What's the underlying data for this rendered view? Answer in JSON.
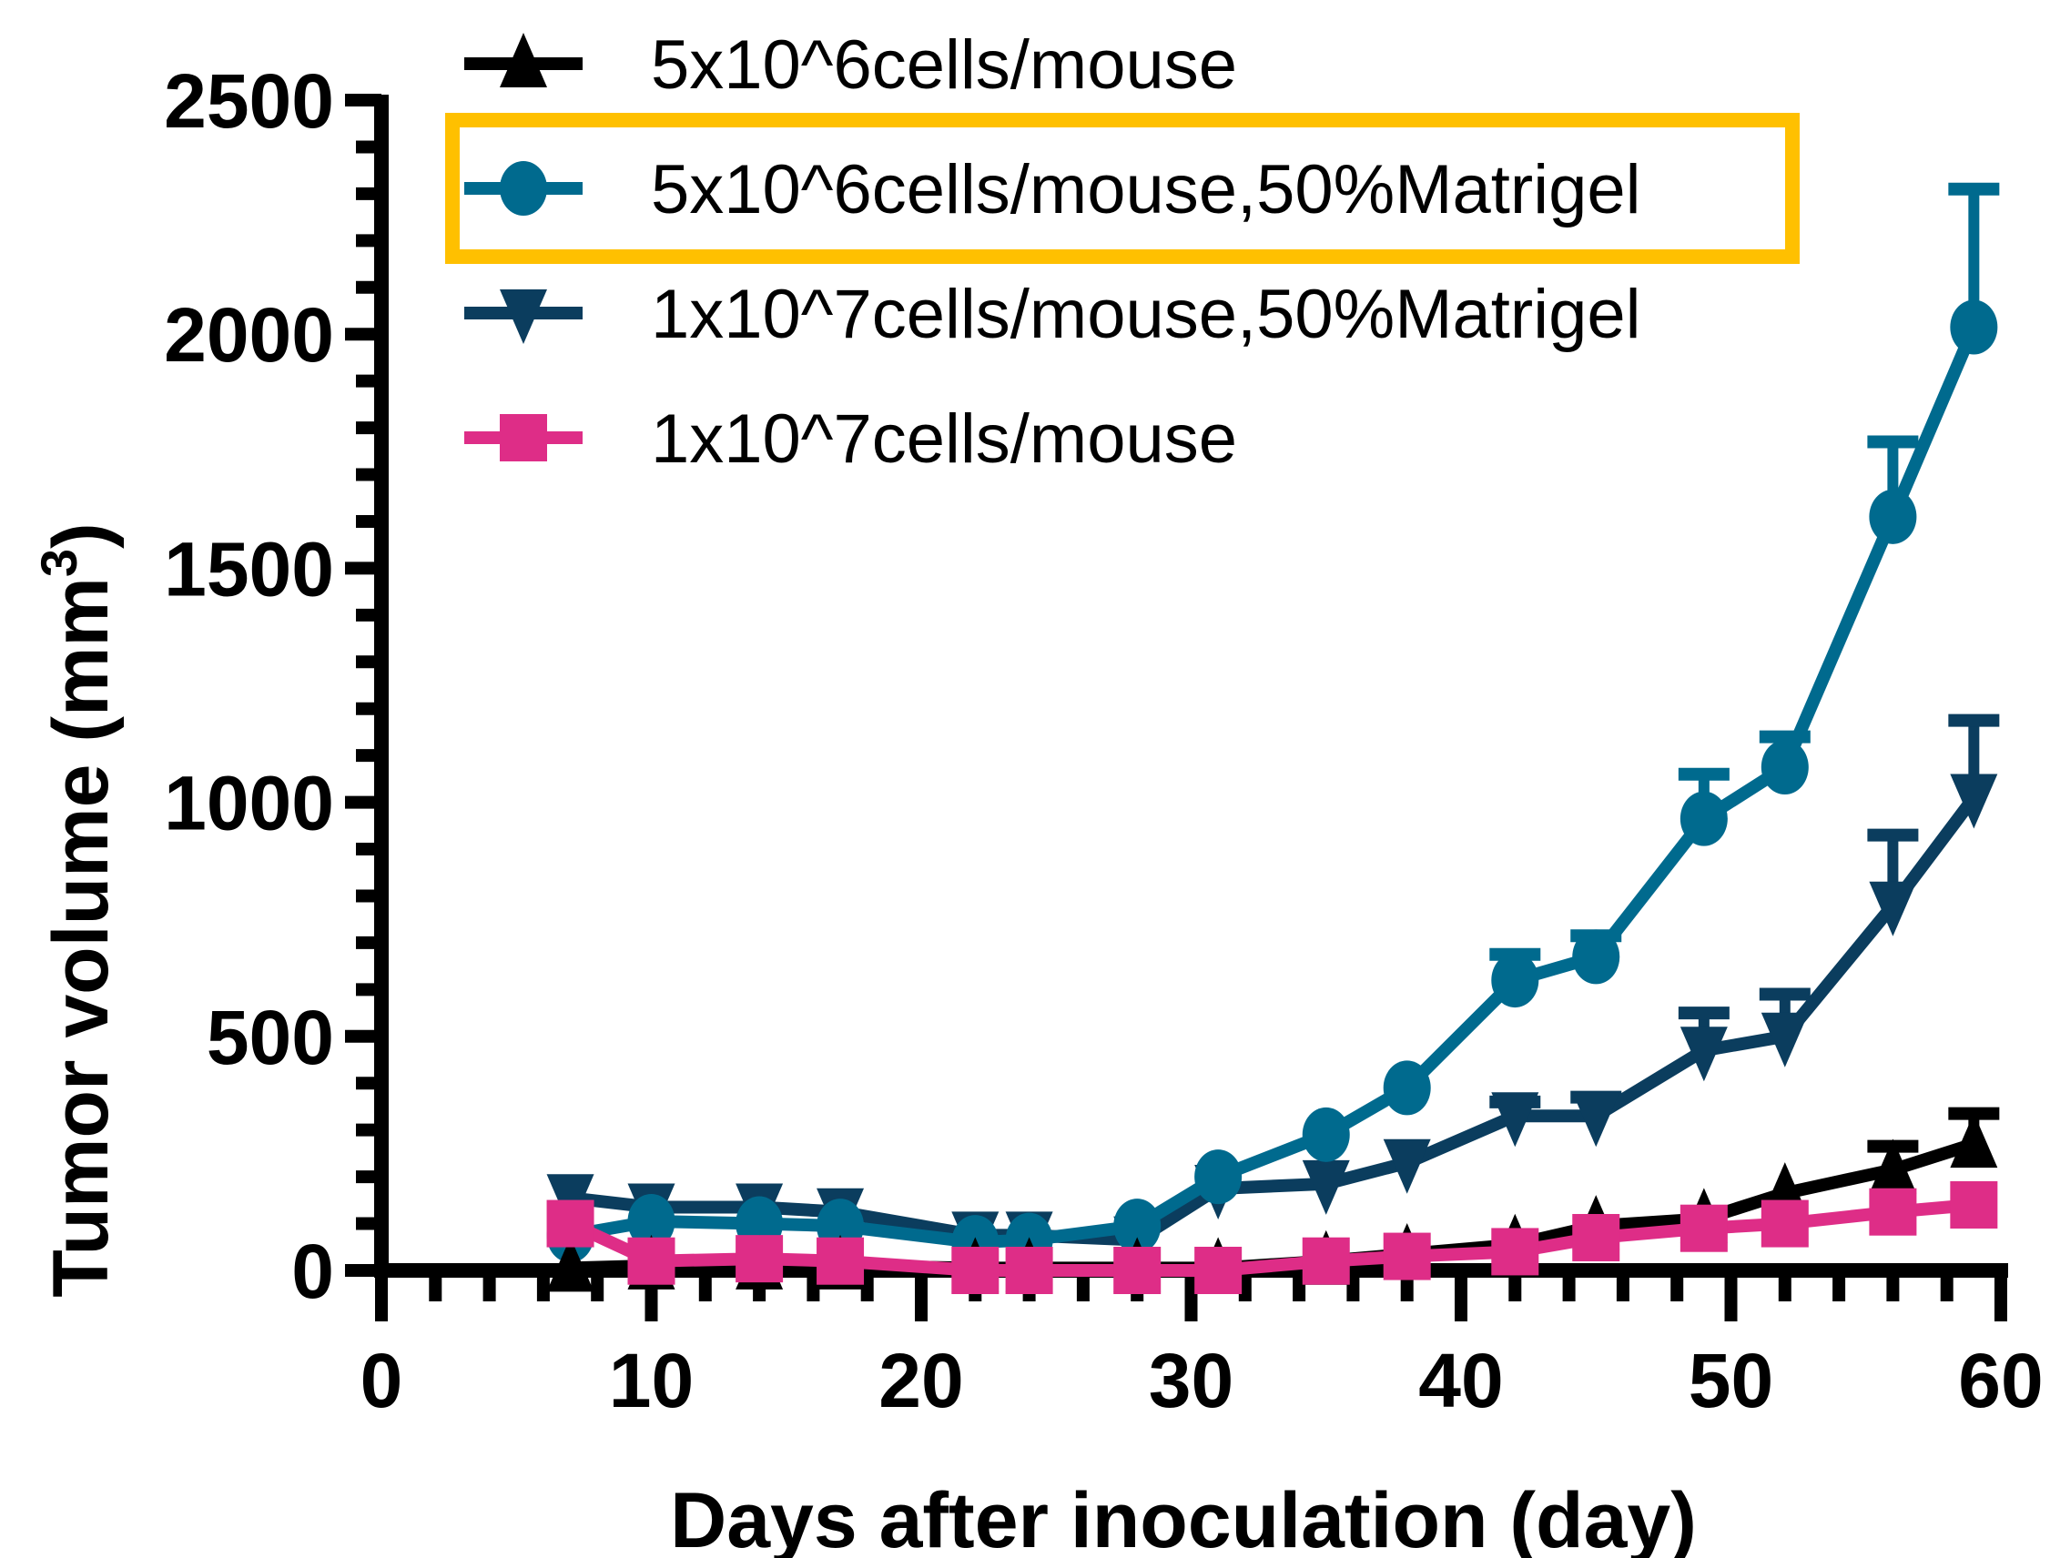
{
  "chart_data": {
    "type": "line",
    "title": "",
    "xlabel": "Days after inoculation (day)",
    "ylabel": "Tumor volume (mm",
    "ylabel_superscript": "3",
    "ylabel_suffix": ")",
    "xlim": [
      0,
      60
    ],
    "ylim": [
      0,
      2500
    ],
    "xticks": [
      0,
      10,
      20,
      30,
      40,
      50,
      60
    ],
    "yticks": [
      0,
      500,
      1000,
      1500,
      2000,
      2500
    ],
    "xtick_labels": [
      "0",
      "10",
      "20",
      "30",
      "40",
      "50",
      "60"
    ],
    "ytick_labels": [
      "0",
      "500",
      "1000",
      "1500",
      "2000",
      "2500"
    ],
    "x_minor_step": 2,
    "y_minor_step": 100,
    "grid": false,
    "legend_position": "top",
    "highlighted_legend_index": 1,
    "highlight_color": "#FFC000",
    "x": [
      7,
      10,
      14,
      17,
      22,
      24,
      28,
      31,
      35,
      38,
      42,
      45,
      49,
      52,
      56,
      59
    ],
    "series": [
      {
        "name": "5x10^6cells/mouse",
        "marker": "triangle-up",
        "color": "#000000",
        "values": [
          5,
          10,
          10,
          10,
          5,
          5,
          5,
          5,
          20,
          35,
          55,
          95,
          110,
          165,
          215,
          270
        ],
        "errors": [
          0,
          0,
          0,
          0,
          0,
          0,
          0,
          0,
          0,
          0,
          0,
          0,
          0,
          0,
          50,
          65
        ]
      },
      {
        "name": "5x10^6cells/mouse,50%Matrigel",
        "marker": "circle",
        "color": "#006A8E",
        "values": [
          75,
          105,
          100,
          95,
          60,
          65,
          95,
          200,
          290,
          390,
          620,
          670,
          965,
          1075,
          1610,
          2015
        ],
        "errors": [
          0,
          0,
          0,
          0,
          0,
          0,
          0,
          0,
          0,
          0,
          55,
          45,
          95,
          65,
          160,
          295
        ]
      },
      {
        "name": "1x10^7cells/mouse,50%Matrigel",
        "marker": "triangle-down",
        "color": "#0B3D5E",
        "values": [
          155,
          135,
          135,
          125,
          75,
          75,
          65,
          175,
          185,
          230,
          330,
          330,
          470,
          500,
          780,
          1010
        ],
        "errors": [
          0,
          0,
          0,
          0,
          0,
          0,
          0,
          0,
          0,
          0,
          30,
          40,
          80,
          90,
          150,
          165
        ]
      },
      {
        "name": "1x10^7cells/mouse",
        "marker": "square",
        "color": "#DE2D87",
        "values": [
          100,
          20,
          25,
          20,
          0,
          0,
          0,
          0,
          20,
          30,
          40,
          70,
          90,
          100,
          125,
          140
        ],
        "errors": [
          0,
          0,
          0,
          0,
          0,
          0,
          0,
          0,
          0,
          0,
          0,
          0,
          0,
          0,
          0,
          0
        ]
      }
    ]
  }
}
